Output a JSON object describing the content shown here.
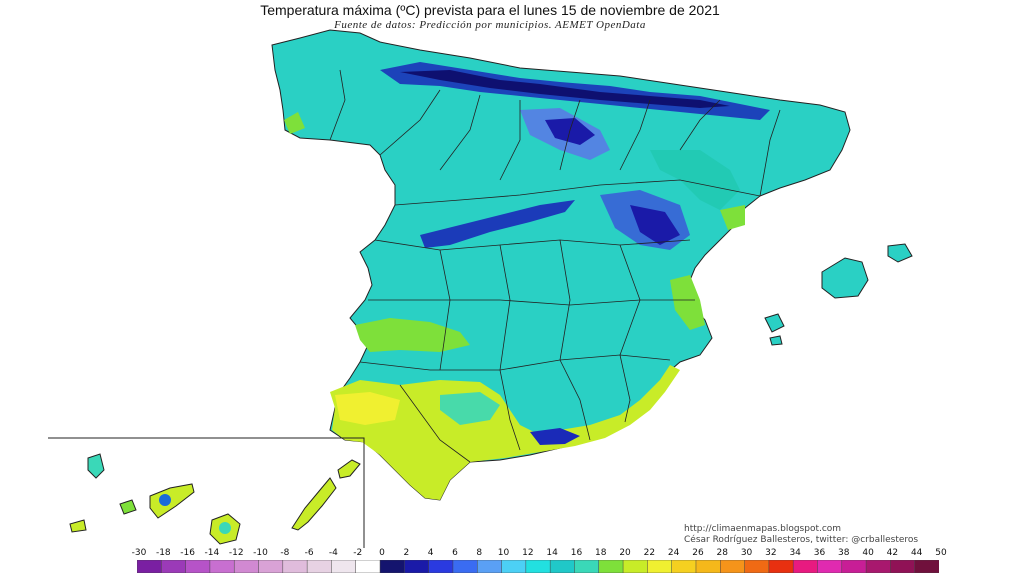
{
  "header": {
    "title": "Temperatura máxima (ºC) prevista para el lunes 15 de noviembre de 2021",
    "subtitle": "Fuente de datos: Predicción por municipios. AEMET OpenData"
  },
  "credits": {
    "site": "http://climaenmapas.blogspot.com",
    "author": "César Rodríguez Ballesteros, twitter: @crballesteros"
  },
  "legend": {
    "labels": [
      "-30",
      "-18",
      "-16",
      "-14",
      "-12",
      "-10",
      "-8",
      "-6",
      "-4",
      "-2",
      "0",
      "2",
      "4",
      "6",
      "8",
      "10",
      "12",
      "14",
      "16",
      "18",
      "20",
      "22",
      "24",
      "26",
      "28",
      "30",
      "32",
      "34",
      "36",
      "38",
      "40",
      "42",
      "44",
      "50"
    ],
    "colors": [
      "#7a1fa2",
      "#9b3ab8",
      "#b653c8",
      "#c86fd0",
      "#d189d2",
      "#d9a2d6",
      "#e0bcdc",
      "#e7d2e3",
      "#efe6ee",
      "#ffffff",
      "#14146e",
      "#1a1aa8",
      "#2a3ae0",
      "#3a6cf2",
      "#5aa0f5",
      "#4cd0f5",
      "#22e0e0",
      "#20c8c8",
      "#3ad8b8",
      "#7ee03a",
      "#c8ec28",
      "#f0f030",
      "#f5d020",
      "#f5b81a",
      "#f5941a",
      "#f06a14",
      "#e83010",
      "#e81a80",
      "#e02ab0",
      "#c81e96",
      "#a8186e",
      "#901256",
      "#70103c"
    ]
  },
  "map": {
    "region": "España",
    "inset": "Canarias",
    "temperature_scale": "ºC"
  }
}
